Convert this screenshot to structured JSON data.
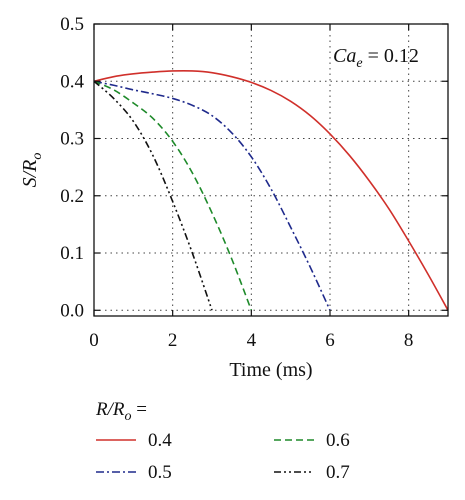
{
  "chart_data": {
    "type": "line",
    "xlabel": "Time (ms)",
    "ylabel_main": "S/R",
    "ylabel_sub": "o",
    "xlim": [
      0,
      9
    ],
    "ylim": [
      -0.01,
      0.5
    ],
    "xticks": [
      0,
      2,
      4,
      6,
      8
    ],
    "xtick_labels": [
      "0",
      "2",
      "4",
      "6",
      "8"
    ],
    "yticks": [
      0.0,
      0.1,
      0.2,
      0.3,
      0.4,
      0.5
    ],
    "ytick_labels": [
      "0.0",
      "0.1",
      "0.2",
      "0.3",
      "0.4",
      "0.5"
    ],
    "grid": "dotted",
    "annotation": {
      "main": "Ca",
      "sub": "e",
      "rest": " = 0.12"
    },
    "legend_title": {
      "main": "R/R",
      "sub": "o",
      "rest": " ="
    },
    "legend_placement": "below",
    "series": [
      {
        "name": "0.4",
        "color": "#d0302b",
        "dash": "solid",
        "x": [
          0,
          0.5,
          1,
          1.5,
          2,
          2.5,
          3,
          3.5,
          4,
          4.5,
          5,
          5.5,
          6,
          6.5,
          7,
          7.5,
          8,
          8.5,
          9
        ],
        "y": [
          0.4,
          0.408,
          0.413,
          0.416,
          0.418,
          0.418,
          0.415,
          0.408,
          0.398,
          0.384,
          0.365,
          0.34,
          0.308,
          0.27,
          0.226,
          0.177,
          0.121,
          0.062,
          0.0
        ]
      },
      {
        "name": "0.5",
        "color": "#1f2a8c",
        "dash": "dashdot",
        "x": [
          0,
          0.5,
          1,
          1.5,
          2,
          2.5,
          3,
          3.5,
          4,
          4.5,
          5,
          5.5,
          6
        ],
        "y": [
          0.4,
          0.393,
          0.385,
          0.378,
          0.37,
          0.358,
          0.34,
          0.31,
          0.268,
          0.212,
          0.145,
          0.075,
          0.0
        ]
      },
      {
        "name": "0.6",
        "color": "#1e8a2a",
        "dash": "dashed",
        "x": [
          0,
          0.5,
          1,
          1.5,
          2,
          2.5,
          3,
          3.5,
          4
        ],
        "y": [
          0.4,
          0.385,
          0.362,
          0.335,
          0.295,
          0.24,
          0.17,
          0.09,
          0.0
        ]
      },
      {
        "name": "0.7",
        "color": "#111111",
        "dash": "dashdotdot",
        "x": [
          0,
          0.5,
          1,
          1.5,
          2,
          2.5,
          3
        ],
        "y": [
          0.4,
          0.37,
          0.33,
          0.27,
          0.19,
          0.1,
          0.0
        ]
      }
    ]
  }
}
